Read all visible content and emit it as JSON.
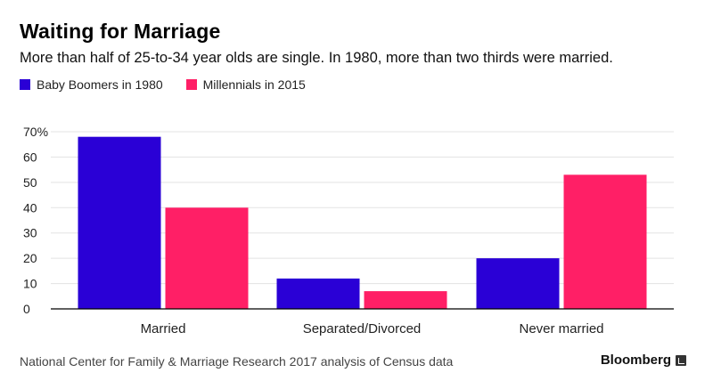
{
  "title": "Waiting for Marriage",
  "subtitle": "More than half of 25-to-34 year olds are single. In 1980, more than two thirds were married.",
  "source": "National Center for Family & Marriage Research 2017 analysis of Census data",
  "brand": "Bloomberg",
  "colors": {
    "boomers": "#2a00d6",
    "millennials": "#ff1f66",
    "grid": "#e3e3e3",
    "axis": "#000000"
  },
  "chart_data": {
    "type": "bar",
    "title": "Waiting for Marriage",
    "xlabel": "",
    "ylabel": "",
    "ylim": [
      0,
      70
    ],
    "yticks": [
      0,
      10,
      20,
      30,
      40,
      50,
      60,
      70
    ],
    "ytick_labels": [
      "0",
      "10",
      "20",
      "30",
      "40",
      "50",
      "60",
      "70%"
    ],
    "categories": [
      "Married",
      "Separated/Divorced",
      "Never married"
    ],
    "series": [
      {
        "name": "Baby Boomers in 1980",
        "values": [
          68,
          12,
          20
        ]
      },
      {
        "name": "Millennials in 2015",
        "values": [
          40,
          7,
          53
        ]
      }
    ],
    "legend": "top-left",
    "grid": true
  }
}
